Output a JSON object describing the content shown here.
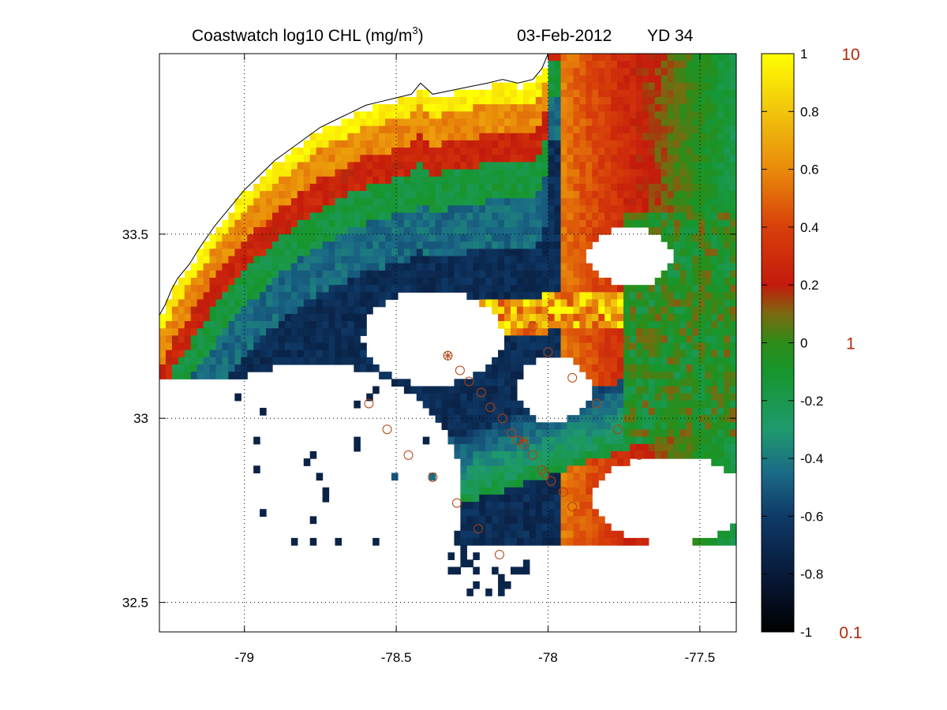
{
  "title": {
    "product": "Coastwatch  log10  CHL (mg/m",
    "unit_superscript": "3",
    "unit_close": ")",
    "date": "03-Feb-2012",
    "yearday": "YD 34"
  },
  "chart_data": {
    "type": "heatmap",
    "variable": "log10 CHL (mg/m^3)",
    "x_axis": {
      "range": [
        -79.28,
        -77.38
      ],
      "ticks": [
        -79,
        -78.5,
        -78,
        -77.5
      ],
      "tick_labels": [
        "-79",
        "-78.5",
        "-78",
        "-77.5"
      ],
      "grid": true
    },
    "y_axis": {
      "range": [
        32.42,
        33.99
      ],
      "ticks": [
        32.5,
        33,
        33.5
      ],
      "tick_labels": [
        "32.5",
        "33",
        "33.5"
      ],
      "grid": true
    },
    "colorbar": {
      "range": [
        -1,
        1
      ],
      "ticks": [
        1,
        0.8,
        0.6,
        0.4,
        0.2,
        0,
        -0.2,
        -0.4,
        -0.6,
        -0.8,
        -1
      ],
      "tick_labels": [
        "1",
        "0.8",
        "0.6",
        "0.4",
        "0.2",
        "0",
        "-0.2",
        "-0.4",
        "-0.6",
        "-0.8",
        "-1"
      ],
      "concentration_labels": [
        {
          "value": 1,
          "text": "10"
        },
        {
          "value": 0,
          "text": "1"
        },
        {
          "value": -1,
          "text": "0.1"
        }
      ],
      "colormap": [
        {
          "value": -1.0,
          "color": "#000000"
        },
        {
          "value": -0.8,
          "color": "#081a3a"
        },
        {
          "value": -0.6,
          "color": "#0f3a68"
        },
        {
          "value": -0.45,
          "color": "#1b6a86"
        },
        {
          "value": -0.3,
          "color": "#1e9a6e"
        },
        {
          "value": -0.1,
          "color": "#17962d"
        },
        {
          "value": 0.0,
          "color": "#2d8c18"
        },
        {
          "value": 0.1,
          "color": "#7a6a10"
        },
        {
          "value": 0.2,
          "color": "#c41a0c"
        },
        {
          "value": 0.4,
          "color": "#d8400a"
        },
        {
          "value": 0.6,
          "color": "#e98a0a"
        },
        {
          "value": 0.8,
          "color": "#f1c40d"
        },
        {
          "value": 1.0,
          "color": "#ffff00"
        }
      ],
      "concentration_label_color": "#b22a0a"
    },
    "coastline": [
      [
        -79.28,
        33.28
      ],
      [
        -79.26,
        33.31
      ],
      [
        -79.24,
        33.35
      ],
      [
        -79.22,
        33.38
      ],
      [
        -79.18,
        33.42
      ],
      [
        -79.15,
        33.46
      ],
      [
        -79.1,
        33.52
      ],
      [
        -79.05,
        33.57
      ],
      [
        -79.0,
        33.62
      ],
      [
        -78.95,
        33.66
      ],
      [
        -78.9,
        33.7
      ],
      [
        -78.85,
        33.73
      ],
      [
        -78.8,
        33.76
      ],
      [
        -78.75,
        33.79
      ],
      [
        -78.7,
        33.81
      ],
      [
        -78.65,
        33.83
      ],
      [
        -78.6,
        33.85
      ],
      [
        -78.55,
        33.86
      ],
      [
        -78.5,
        33.87
      ],
      [
        -78.45,
        33.88
      ],
      [
        -78.42,
        33.91
      ],
      [
        -78.38,
        33.88
      ],
      [
        -78.32,
        33.89
      ],
      [
        -78.26,
        33.9
      ],
      [
        -78.2,
        33.91
      ],
      [
        -78.15,
        33.92
      ],
      [
        -78.1,
        33.91
      ],
      [
        -78.05,
        33.92
      ],
      [
        -78.02,
        33.95
      ],
      [
        -78.0,
        33.99
      ]
    ],
    "stations": [
      {
        "lon": -78.59,
        "lat": 33.04
      },
      {
        "lon": -78.53,
        "lat": 32.97
      },
      {
        "lon": -78.46,
        "lat": 32.9
      },
      {
        "lon": -78.38,
        "lat": 32.84
      },
      {
        "lon": -78.3,
        "lat": 32.77
      },
      {
        "lon": -78.23,
        "lat": 32.7
      },
      {
        "lon": -78.16,
        "lat": 32.63
      },
      {
        "lon": -78.33,
        "lat": 33.17
      },
      {
        "lon": -78.29,
        "lat": 33.13
      },
      {
        "lon": -78.26,
        "lat": 33.1
      },
      {
        "lon": -78.22,
        "lat": 33.07
      },
      {
        "lon": -78.19,
        "lat": 33.03
      },
      {
        "lon": -78.15,
        "lat": 33.0
      },
      {
        "lon": -78.12,
        "lat": 32.96
      },
      {
        "lon": -78.1,
        "lat": 32.94
      },
      {
        "lon": -78.08,
        "lat": 32.93
      },
      {
        "lon": -78.05,
        "lat": 32.9
      },
      {
        "lon": -78.02,
        "lat": 32.86
      },
      {
        "lon": -78.01,
        "lat": 32.85
      },
      {
        "lon": -77.99,
        "lat": 32.83
      },
      {
        "lon": -77.95,
        "lat": 32.8
      },
      {
        "lon": -77.92,
        "lat": 32.76
      },
      {
        "lon": -78.05,
        "lat": 33.25
      },
      {
        "lon": -78.0,
        "lat": 33.18
      },
      {
        "lon": -77.92,
        "lat": 33.11
      },
      {
        "lon": -77.84,
        "lat": 33.04
      },
      {
        "lon": -77.77,
        "lat": 32.97
      },
      {
        "lon": -77.7,
        "lat": 32.9
      }
    ],
    "starred_stations": [
      {
        "lon": -78.33,
        "lat": 33.17
      },
      {
        "lon": -78.08,
        "lat": 32.94
      }
    ],
    "station_color": "#b4400e"
  }
}
